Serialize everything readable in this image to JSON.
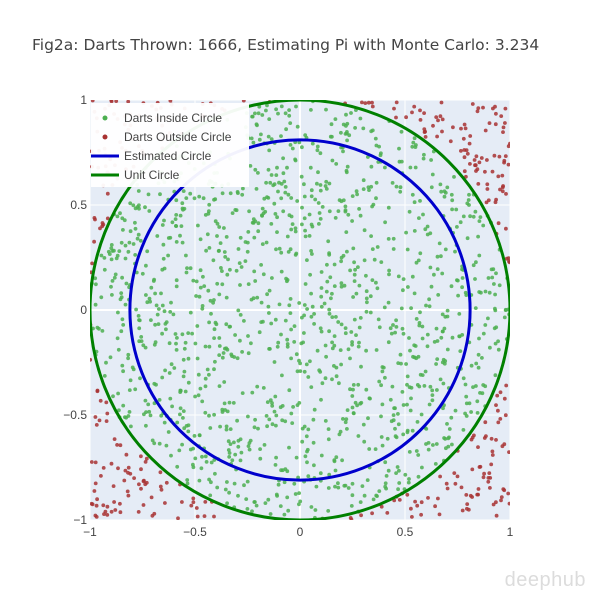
{
  "chart_data": {
    "type": "scatter",
    "title": "Fig2a: Darts Thrown: 1666, Estimating Pi with Monte Carlo: 3.234",
    "darts_thrown": 1666,
    "pi_estimate": 3.234,
    "xlim": [
      -1,
      1
    ],
    "ylim": [
      -1,
      1
    ],
    "x_ticks": [
      -1,
      -0.5,
      0,
      0.5,
      1
    ],
    "y_ticks": [
      -1,
      -0.5,
      0,
      0.5,
      1
    ],
    "x_tick_labels": [
      "−1",
      "−0.5",
      "0",
      "0.5",
      "1"
    ],
    "y_tick_labels": [
      "−1",
      "−0.5",
      "0",
      "0.5",
      "1"
    ],
    "grid": true,
    "legend_position": "top-left",
    "series": [
      {
        "name": "Darts Inside Circle",
        "kind": "points",
        "color": "#4caf50",
        "region": "inside unit circle"
      },
      {
        "name": "Darts Outside Circle",
        "kind": "points",
        "color": "#a83232",
        "region": "outside unit circle"
      },
      {
        "name": "Estimated Circle",
        "kind": "circle",
        "color": "#0000cc",
        "radius": 0.81
      },
      {
        "name": "Unit Circle",
        "kind": "circle",
        "color": "#008000",
        "radius": 1.0
      }
    ],
    "plot_background": "#e5ecf6"
  },
  "watermark": "deephub"
}
